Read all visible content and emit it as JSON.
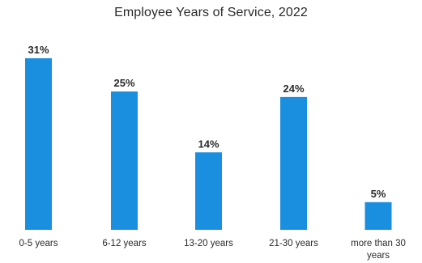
{
  "chart_data": {
    "type": "bar",
    "title": "Employee Years of Service, 2022",
    "xlabel": "",
    "ylabel": "",
    "categories": [
      "0-5 years",
      "6-12 years",
      "13-20 years",
      "21-30 years",
      "more than 30 years"
    ],
    "category_lines": [
      [
        "0-5 years"
      ],
      [
        "6-12 years"
      ],
      [
        "13-20 years"
      ],
      [
        "21-30 years"
      ],
      [
        "more than 30",
        "years"
      ]
    ],
    "values": [
      31,
      25,
      14,
      24,
      5
    ],
    "value_labels": [
      "31%",
      "25%",
      "14%",
      "24%",
      "5%"
    ],
    "ylim": [
      0,
      31
    ],
    "grid": false,
    "legend": "none",
    "bar_color": "#1b8fdf"
  }
}
